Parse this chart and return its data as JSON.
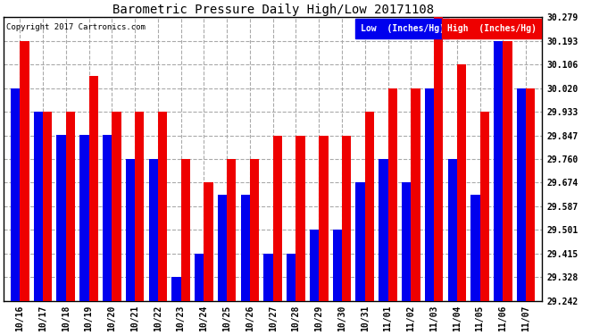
{
  "title": "Barometric Pressure Daily High/Low 20171108",
  "copyright": "Copyright 2017 Cartronics.com",
  "legend_low": "Low  (Inches/Hg)",
  "legend_high": "High  (Inches/Hg)",
  "low_color": "#0000ee",
  "high_color": "#ee0000",
  "background_color": "#ffffff",
  "grid_color": "#aaaaaa",
  "dates": [
    "10/16",
    "10/17",
    "10/18",
    "10/19",
    "10/20",
    "10/21",
    "10/22",
    "10/23",
    "10/24",
    "10/25",
    "10/26",
    "10/27",
    "10/28",
    "10/29",
    "10/30",
    "10/31",
    "11/01",
    "11/02",
    "11/03",
    "11/04",
    "11/05",
    "11/06",
    "11/07"
  ],
  "low": [
    30.02,
    29.935,
    29.848,
    29.848,
    29.848,
    29.762,
    29.762,
    29.33,
    29.415,
    29.63,
    29.63,
    29.415,
    29.415,
    29.501,
    29.501,
    29.674,
    29.762,
    29.674,
    30.02,
    29.762,
    29.63,
    30.193,
    30.02
  ],
  "high": [
    30.193,
    29.933,
    29.933,
    30.065,
    29.933,
    29.933,
    29.933,
    29.762,
    29.674,
    29.762,
    29.762,
    29.847,
    29.847,
    29.847,
    29.847,
    29.933,
    30.02,
    30.02,
    30.279,
    30.106,
    29.933,
    30.193,
    30.02
  ],
  "ylim_min": 29.242,
  "ylim_max": 30.279,
  "yticks": [
    29.242,
    29.328,
    29.415,
    29.501,
    29.587,
    29.674,
    29.76,
    29.847,
    29.933,
    30.02,
    30.106,
    30.193,
    30.279
  ],
  "bar_width": 0.4
}
